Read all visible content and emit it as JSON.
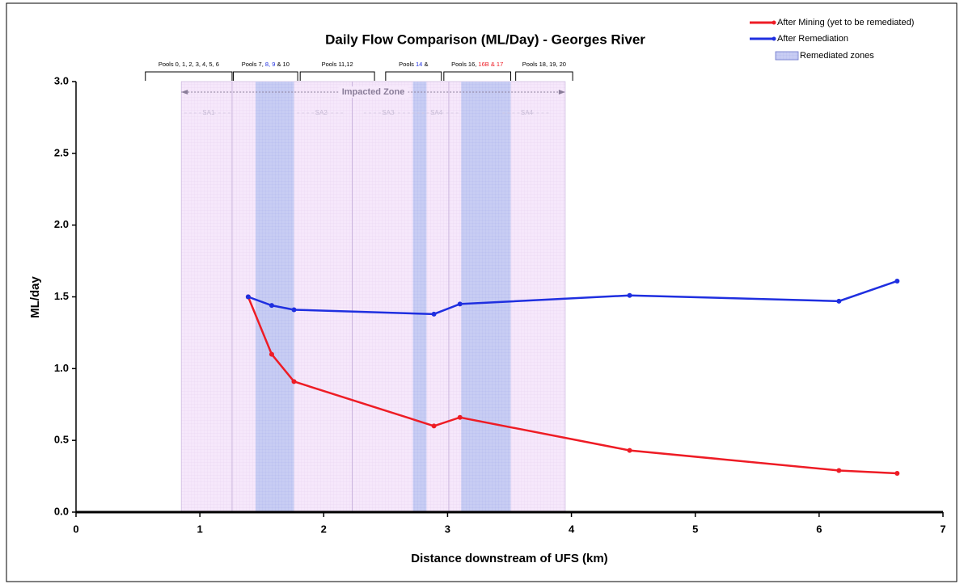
{
  "chart_data": {
    "type": "line",
    "title": "Daily Flow Comparison (ML/Day) - Georges River",
    "x_label": "Distance downstream of UFS (km)",
    "y_label": "ML/day",
    "xlim": [
      0,
      7
    ],
    "ylim": [
      0,
      3
    ],
    "xticks": [
      0,
      1,
      2,
      3,
      4,
      5,
      6,
      7
    ],
    "yticks": [
      {
        "value": 0,
        "label": "0.0"
      },
      {
        "value": 0.5,
        "label": "0.5"
      },
      {
        "value": 1,
        "label": "1.0"
      },
      {
        "value": 1.5,
        "label": "1.5"
      },
      {
        "value": 2,
        "label": "2.0"
      },
      {
        "value": 2.5,
        "label": "2.5"
      },
      {
        "value": 3,
        "label": "3.0"
      }
    ],
    "grid": false,
    "legend": "top-right",
    "series": [
      {
        "name": "After Mining (yet to be remediated)",
        "color": "#ee1c25",
        "x": [
          1.39,
          1.58,
          1.76,
          2.89,
          3.1,
          4.47,
          6.16,
          6.63
        ],
        "values": [
          1.5,
          1.1,
          0.91,
          0.6,
          0.66,
          0.43,
          0.29,
          0.27
        ]
      },
      {
        "name": "After Remediation",
        "color": "#1f2fe0",
        "x": [
          1.39,
          1.58,
          1.76,
          2.89,
          3.1,
          4.47,
          6.16,
          6.63
        ],
        "values": [
          1.5,
          1.44,
          1.41,
          1.38,
          1.45,
          1.51,
          1.47,
          1.61
        ]
      }
    ],
    "impacted_zone": {
      "label": "Impacted Zone",
      "range": [
        0.85,
        3.95
      ],
      "color": "#f6e8fb"
    },
    "remediated_zones": {
      "name": "Remediated zones",
      "color": "#c8cdf3",
      "ranges": [
        [
          1.45,
          1.76
        ],
        [
          2.72,
          2.83
        ],
        [
          3.11,
          3.51
        ]
      ]
    },
    "dividers": [
      1.26,
      2.23,
      3.01
    ],
    "sub_areas": [
      {
        "label": "SA1",
        "x": 1.07
      },
      {
        "label": "SA2",
        "x": 1.98
      },
      {
        "label": "SA3",
        "x": 2.52
      },
      {
        "label": "SA4",
        "x": 2.91
      },
      {
        "label": "SA4",
        "x": 3.64
      }
    ],
    "pools": [
      {
        "range": [
          0.56,
          1.26
        ],
        "parts": [
          {
            "text": "Pools 0, 1, 2, 3, 4, 5, 6",
            "color": "#000000"
          }
        ]
      },
      {
        "range": [
          1.27,
          1.79
        ],
        "parts": [
          {
            "text": "Pools 7, ",
            "color": "#000000"
          },
          {
            "text": "8, 9",
            "color": "#1f2fe0"
          },
          {
            "text": " & 10",
            "color": "#000000"
          }
        ]
      },
      {
        "range": [
          1.81,
          2.41
        ],
        "parts": [
          {
            "text": "Pools 11,12",
            "color": "#000000"
          }
        ]
      },
      {
        "range": [
          2.5,
          2.95
        ],
        "parts": [
          {
            "text": "Pools ",
            "color": "#000000"
          },
          {
            "text": "14",
            "color": "#1f2fe0"
          },
          {
            "text": " &",
            "color": "#000000"
          }
        ]
      },
      {
        "range": [
          2.97,
          3.51
        ],
        "parts": [
          {
            "text": "Pools 16, ",
            "color": "#000000"
          },
          {
            "text": "16B & 17",
            "color": "#ee1c25"
          }
        ]
      },
      {
        "range": [
          3.55,
          4.01
        ],
        "parts": [
          {
            "text": "Pools 18, 19, 20",
            "color": "#000000"
          }
        ]
      }
    ]
  }
}
